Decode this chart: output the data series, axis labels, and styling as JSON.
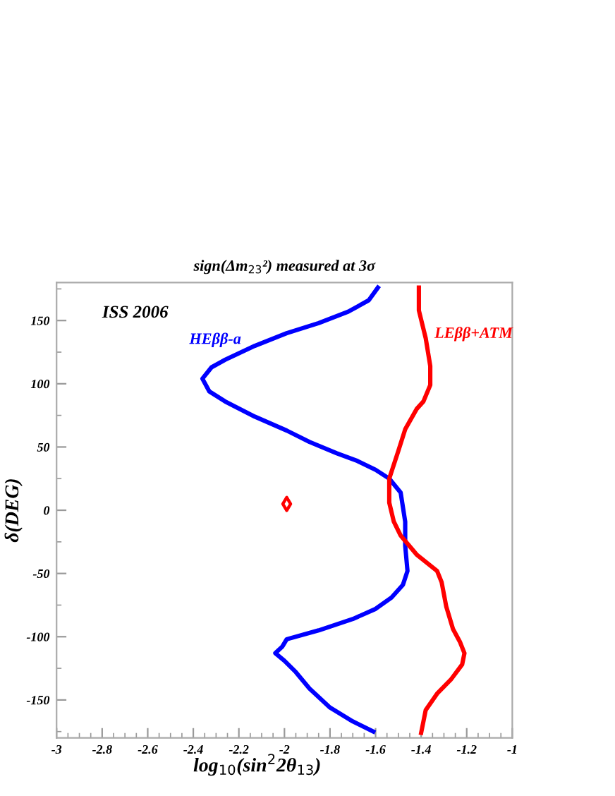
{
  "chart_data": {
    "type": "line",
    "title": "sign(Δm$_{23}$²) measured at 3σ",
    "xlabel": "log$_{10}$(sin$^{2}$2θ$_{13}$)",
    "ylabel": "δ(DEG)",
    "annotations": [
      "ISS 2006"
    ],
    "xlim": [
      -3,
      -1
    ],
    "ylim": [
      -180,
      180
    ],
    "xticks": [
      -3,
      -2.8,
      -2.6,
      -2.4,
      -2.2,
      -2,
      -1.8,
      -1.6,
      -1.4,
      -1.2,
      -1
    ],
    "yticks": [
      -150,
      -100,
      -50,
      0,
      50,
      100,
      150
    ],
    "grid": false,
    "legend": false,
    "line_style": "solid",
    "marker": "none",
    "series": [
      {
        "name": "HEββ-a",
        "color": "#0000ff",
        "x": [
          -1.59,
          -1.63,
          -1.72,
          -1.85,
          -1.99,
          -2.13,
          -2.26,
          -2.32,
          -2.36,
          -2.33,
          -2.26,
          -2.13,
          -1.99,
          -1.89,
          -1.77,
          -1.68,
          -1.6,
          -1.54,
          -1.49,
          -1.47,
          -1.47,
          -1.46,
          -1.46,
          -1.48,
          -1.53,
          -1.6,
          -1.7,
          -1.85,
          -1.99,
          -2.01,
          -2.04,
          -2.0,
          -1.95,
          -1.89,
          -1.8,
          -1.7,
          -1.61
        ],
        "values": [
          176,
          166,
          157,
          148,
          140,
          130,
          119,
          113,
          104,
          94,
          86,
          74,
          63,
          54,
          45,
          39,
          32,
          25,
          14,
          -9,
          -28,
          -48,
          -48,
          -59,
          -69,
          -78,
          -86,
          -95,
          -102,
          -108,
          -113,
          -119,
          -128,
          -141,
          -156,
          -167,
          -175
        ]
      },
      {
        "name": "LEββ+ATM",
        "color": "#ff0000",
        "x": [
          -1.41,
          -1.41,
          -1.38,
          -1.36,
          -1.36,
          -1.39,
          -1.42,
          -1.47,
          -1.5,
          -1.54,
          -1.54,
          -1.52,
          -1.49,
          -1.42,
          -1.33,
          -1.31,
          -1.29,
          -1.26,
          -1.23,
          -1.21,
          -1.22,
          -1.27,
          -1.33,
          -1.38,
          -1.4
        ],
        "values": [
          176,
          158,
          136,
          114,
          99,
          86,
          80,
          64,
          47,
          25,
          6,
          -9,
          -20,
          -35,
          -48,
          -57,
          -76,
          -94,
          -104,
          -113,
          -122,
          -134,
          -145,
          -158,
          -176
        ]
      },
      {
        "type": "scatter",
        "marker": "diamond",
        "color": "#ff0000",
        "x": [
          -1.99
        ],
        "values": [
          5
        ]
      }
    ]
  }
}
